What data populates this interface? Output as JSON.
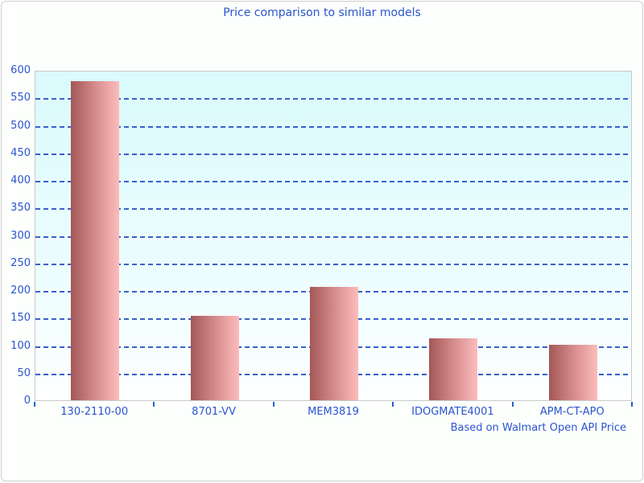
{
  "chart_data": {
    "type": "bar",
    "title": "Price comparison to similar models",
    "footnote": "Based on Walmart Open API Price",
    "categories": [
      "130-2110-00",
      "8701-VV",
      "MEM3819",
      "IDOGMATE4001",
      "APM-CT-APO"
    ],
    "values": [
      580,
      153,
      206,
      112,
      101
    ],
    "xlabel": "",
    "ylabel": "",
    "ylim": [
      0,
      600
    ],
    "ytick_step": 50,
    "grid": "horizontal-dashed",
    "legend": "none",
    "colors": {
      "label_text": "#2a55cd",
      "gridline": "#3a60c8",
      "axis_tick": "#1c64cc",
      "plot_bg_top": "#d9fafc",
      "plot_bg_bottom": "#ffffff",
      "plot_border": "#c9c9c9",
      "bar_gradient_left": "#a35757",
      "bar_gradient_right": "#fcbcbc",
      "page_border": "#cfcfcf"
    }
  }
}
